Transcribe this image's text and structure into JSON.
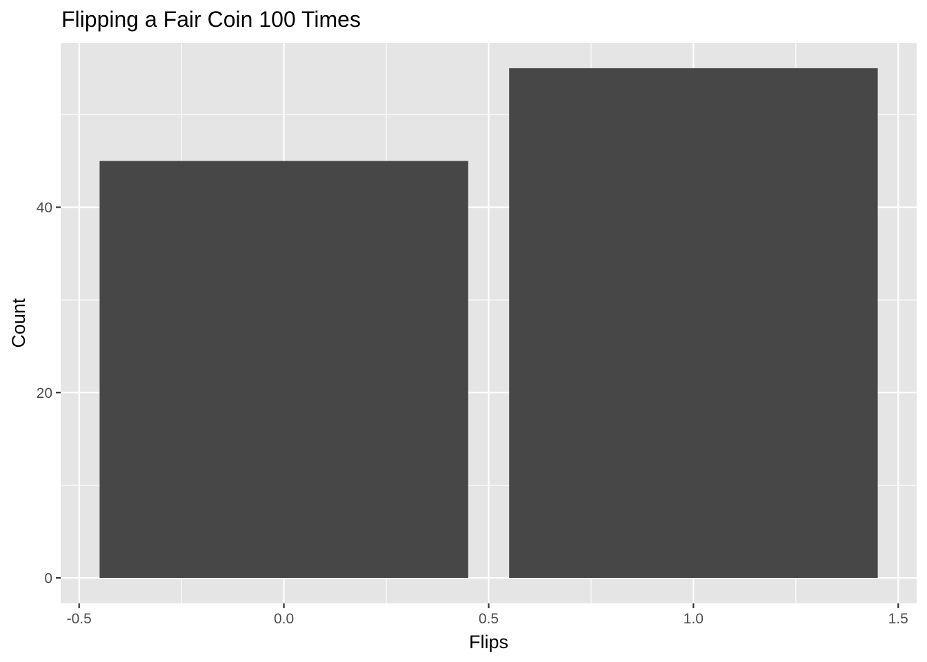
{
  "chart_data": {
    "type": "bar",
    "title": "Flipping a Fair Coin 100 Times",
    "xlabel": "Flips",
    "ylabel": "Count",
    "bars": [
      {
        "x": 0,
        "value": 45
      },
      {
        "x": 1,
        "value": 55
      }
    ],
    "bar_width": 0.9,
    "xlim": [
      -0.545,
      1.545
    ],
    "ylim": [
      -2.75,
      57.75
    ],
    "x_ticks": [
      -0.5,
      0.0,
      0.5,
      1.0,
      1.5
    ],
    "x_tick_labels": [
      "-0.5",
      "0.0",
      "0.5",
      "1.0",
      "1.5"
    ],
    "x_minor_ticks": [
      -0.25,
      0.25,
      0.75,
      1.25
    ],
    "y_ticks": [
      0,
      20,
      40
    ],
    "y_tick_labels": [
      "0",
      "20",
      "40"
    ],
    "y_minor_ticks": [
      10,
      30,
      50
    ],
    "grid": true,
    "legend": "none",
    "colors": {
      "panel_background": "#e5e5e5",
      "grid": "#ffffff",
      "bar_fill": "#474747",
      "tick_label": "#4d4d4d",
      "tick_mark": "#333333",
      "text": "#000000"
    }
  }
}
